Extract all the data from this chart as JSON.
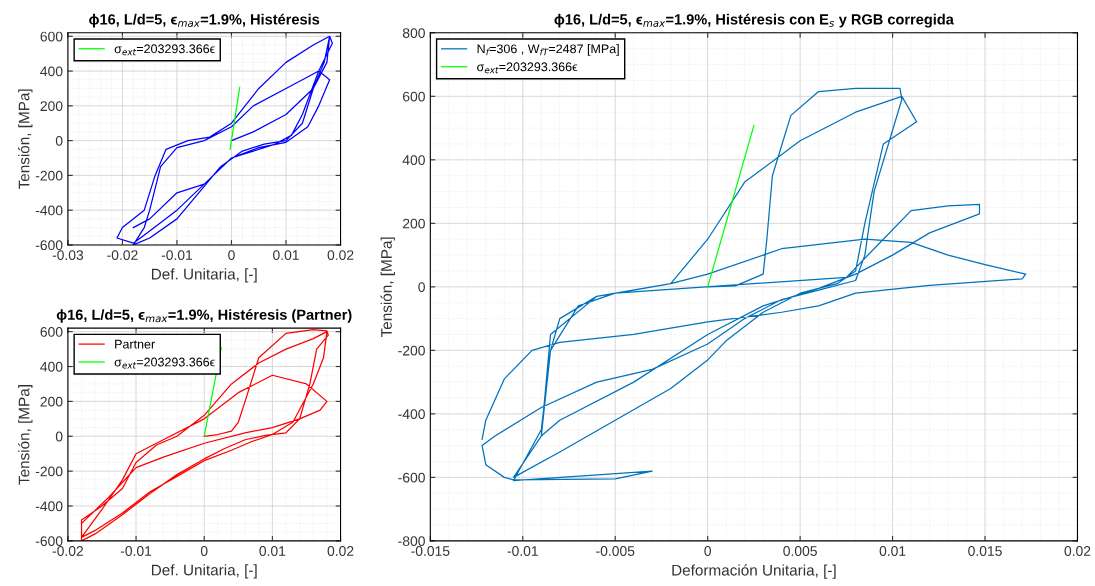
{
  "chart_data": [
    {
      "type": "line",
      "title": "ϕ16, L/d=5, ϵ$_{max}$=1.9%, Histéresis",
      "xlabel": "Def. Unitaria, [-]",
      "ylabel": "Tensión, [MPa]",
      "xlim": [
        -0.03,
        0.02
      ],
      "xticks": [
        -0.03,
        -0.02,
        -0.01,
        0,
        0.01,
        0.02
      ],
      "ylim": [
        -600,
        620
      ],
      "yticks": [
        -600,
        -400,
        -200,
        0,
        200,
        400,
        600
      ],
      "grid": true,
      "legend": "top left",
      "series": [
        {
          "color": "#0000ff",
          "x": [
            0,
            0.004,
            0.01,
            0.015,
            0.017,
            0.018,
            0.0185,
            0.016,
            0.013,
            0.011,
            0.008,
            0.004,
            0,
            -0.005,
            -0.01,
            -0.015,
            -0.018,
            -0.021,
            -0.02,
            -0.016,
            -0.014,
            -0.012,
            -0.008,
            -0.004,
            0,
            0.005,
            0.01,
            0.015,
            0.018,
            0.0175,
            0.015,
            0.013,
            0.01,
            0.006,
            0.002,
            -0.002,
            -0.006,
            -0.01,
            -0.015,
            -0.018,
            -0.016,
            -0.015,
            -0.013,
            -0.01,
            -0.005,
            0,
            0.004,
            0.01,
            0.016,
            0.018,
            0.016,
            0.014,
            0.01,
            0.005,
            0,
            -0.005,
            -0.01,
            -0.015,
            -0.018
          ],
          "values": [
            0,
            50,
            150,
            300,
            450,
            600,
            560,
            400,
            150,
            30,
            -20,
            -60,
            -100,
            -250,
            -400,
            -520,
            -590,
            -560,
            -500,
            -400,
            -200,
            -50,
            0,
            20,
            100,
            300,
            450,
            550,
            600,
            450,
            300,
            100,
            0,
            -20,
            -60,
            -150,
            -300,
            -450,
            -560,
            -600,
            -500,
            -400,
            -150,
            -40,
            0,
            80,
            200,
            300,
            400,
            350,
            200,
            80,
            -10,
            -40,
            -100,
            -250,
            -300,
            -450,
            -500
          ]
        },
        {
          "name": "σ$_{ext}$=203293.366ϵ",
          "color": "#00ff00",
          "x": [
            -0.00025,
            0.0015
          ],
          "values": [
            -50,
            305
          ]
        }
      ]
    },
    {
      "type": "line",
      "title": "ϕ16, L/d=5, ϵ$_{max}$=1.9%, Histéresis (Partner)",
      "xlabel": "Def. Unitaria, [-]",
      "ylabel": "Tensión, [MPa]",
      "xlim": [
        -0.02,
        0.02
      ],
      "xticks": [
        -0.02,
        -0.01,
        0,
        0.01,
        0.02
      ],
      "ylim": [
        -600,
        620
      ],
      "yticks": [
        -600,
        -400,
        -200,
        0,
        200,
        400,
        600
      ],
      "grid": true,
      "legend": "top left",
      "series": [
        {
          "name": "Partner",
          "color": "#ff0000",
          "x": [
            0,
            0.002,
            0.004,
            0.005,
            0.006,
            0.008,
            0.012,
            0.016,
            0.018,
            0.0182,
            0.0165,
            0.0155,
            0.014,
            0.012,
            0.009,
            0.006,
            0.003,
            0,
            -0.004,
            -0.008,
            -0.012,
            -0.016,
            -0.018,
            -0.018,
            -0.015,
            -0.012,
            -0.01,
            -0.007,
            -0.004,
            0,
            0.004,
            0.008,
            0.012,
            0.016,
            0.018,
            0.0175,
            0.016,
            0.013,
            0.01,
            0.007,
            0.004,
            0,
            -0.004,
            -0.008,
            -0.012,
            -0.016,
            -0.018,
            -0.015,
            -0.012,
            -0.01,
            -0.006,
            0,
            0.005,
            0.01,
            0.015,
            0.018,
            0.017,
            0.014,
            0.01,
            0.006,
            0,
            -0.006,
            -0.01,
            -0.014,
            -0.018
          ],
          "values": [
            0,
            10,
            30,
            80,
            200,
            450,
            590,
            612,
            605,
            580,
            500,
            300,
            100,
            20,
            5,
            -20,
            -70,
            -130,
            -220,
            -330,
            -450,
            -560,
            -600,
            -480,
            -400,
            -300,
            -150,
            -50,
            0,
            120,
            300,
            420,
            500,
            560,
            600,
            450,
            300,
            80,
            10,
            -30,
            -80,
            -140,
            -230,
            -320,
            -440,
            -540,
            -580,
            -420,
            -250,
            -100,
            -20,
            100,
            250,
            350,
            300,
            200,
            150,
            100,
            50,
            20,
            -40,
            -120,
            -180,
            -350,
            -500
          ]
        },
        {
          "name": "σ$_{ext}$=203293.366ϵ",
          "color": "#00ff00",
          "x": [
            0,
            0.0025
          ],
          "values": [
            0,
            508
          ]
        }
      ]
    },
    {
      "type": "line",
      "title": "ϕ16, L/d=5, ϵ$_{max}$=1.9%, Histéresis con E$_{s}$ y RGB corregida",
      "xlabel": "Deformación Unitaria, [-]",
      "ylabel": "Tensión, [MPa]",
      "xlim": [
        -0.015,
        0.02
      ],
      "xticks": [
        -0.015,
        -0.01,
        -0.005,
        0,
        0.005,
        0.01,
        0.015,
        0.02
      ],
      "ylim": [
        -800,
        800
      ],
      "yticks": [
        -800,
        -600,
        -400,
        -200,
        0,
        200,
        400,
        600,
        800
      ],
      "grid": true,
      "legend": "top left",
      "series": [
        {
          "name": "N$_{f}$=306 , W$_{fT}$=2487 [MPa]",
          "color": "#0072bd",
          "x": [
            0,
            0.0015,
            0.003,
            0.0032,
            0.0035,
            0.0045,
            0.006,
            0.008,
            0.0104,
            0.0105,
            0.009,
            0.0085,
            0.008,
            0.006,
            0.004,
            0.002,
            0,
            -0.003,
            -0.006,
            -0.009,
            -0.0115,
            -0.0122,
            -0.012,
            -0.011,
            -0.0105,
            -0.005,
            -0.003,
            -0.0105,
            -0.009,
            -0.0085,
            -0.008,
            -0.006,
            -0.004,
            -0.002,
            0,
            0.002,
            0.005,
            0.008,
            0.0105,
            0.0113,
            0.0095,
            0.0085,
            0.008,
            0.007,
            0.005,
            0.003,
            0.001,
            0,
            -0.002,
            -0.005,
            -0.008,
            -0.0105,
            -0.009,
            -0.0085,
            -0.007,
            -0.005,
            0.0075,
            0.0095,
            0.011,
            0.013,
            0.0147,
            0.0147,
            0.012,
            0.01,
            0.008,
            0.006,
            0.003,
            0,
            -0.004,
            -0.008,
            -0.009,
            -0.0085,
            -0.006,
            -0.002,
            0,
            0.004,
            0.0085,
            0.011,
            0.013,
            0.015,
            0.0172,
            0.017,
            0.012,
            0.008,
            0.006,
            0.004,
            0,
            -0.004,
            -0.008,
            -0.0095,
            -0.011,
            -0.012,
            -0.0122
          ],
          "values": [
            0,
            3,
            40,
            150,
            350,
            540,
            615,
            625,
            625,
            590,
            300,
            100,
            20,
            -10,
            -40,
            -100,
            -180,
            -260,
            -300,
            -380,
            -470,
            -500,
            -560,
            -600,
            -608,
            -605,
            -580,
            -610,
            -450,
            -200,
            -100,
            -30,
            -10,
            10,
            150,
            330,
            460,
            550,
            600,
            520,
            450,
            200,
            50,
            10,
            -20,
            -80,
            -170,
            -230,
            -320,
            -420,
            -520,
            -600,
            -470,
            -200,
            -60,
            -20,
            30,
            150,
            240,
            255,
            260,
            230,
            170,
            100,
            40,
            -5,
            -60,
            -150,
            -300,
            -420,
            -470,
            -150,
            -30,
            10,
            40,
            120,
            150,
            140,
            100,
            70,
            40,
            25,
            5,
            -20,
            -60,
            -80,
            -110,
            -150,
            -175,
            -200,
            -290,
            -420,
            -480
          ]
        },
        {
          "name": "σ$_{ext}$=203293.366ϵ",
          "color": "#00ff00",
          "x": [
            0,
            0.0025
          ],
          "values": [
            0,
            508
          ]
        }
      ]
    }
  ]
}
